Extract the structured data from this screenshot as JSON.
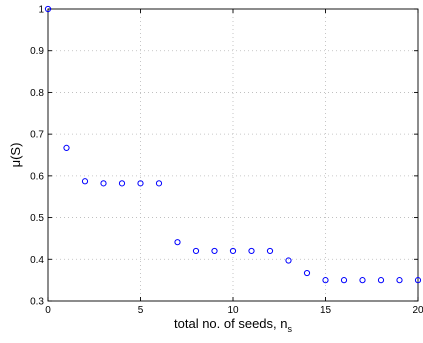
{
  "chart_data": {
    "type": "scatter",
    "title": "",
    "xlabel": "total no. of seeds, n",
    "xlabel_subscript": "s",
    "ylabel": "μ(S)",
    "xlim": [
      0,
      20
    ],
    "ylim": [
      0.3,
      1
    ],
    "grid": true,
    "x_ticks": [
      0,
      5,
      10,
      15,
      20
    ],
    "y_ticks": [
      0.3,
      0.4,
      0.5,
      0.6,
      0.7,
      0.8,
      0.9,
      1
    ],
    "x_tick_labels": [
      "0",
      "5",
      "10",
      "15",
      "20"
    ],
    "y_tick_labels": [
      "0.3",
      "0.4",
      "0.5",
      "0.6",
      "0.7",
      "0.8",
      "0.9",
      "1"
    ],
    "marker": "circle-open",
    "color": "#0000ff",
    "series": [
      {
        "x": [
          0,
          1,
          2,
          3,
          4,
          5,
          6,
          7,
          8,
          9,
          10,
          11,
          12,
          13,
          14,
          15,
          16,
          17,
          18,
          19,
          20
        ],
        "y": [
          1.0,
          0.667,
          0.587,
          0.582,
          0.582,
          0.582,
          0.582,
          0.441,
          0.42,
          0.42,
          0.42,
          0.42,
          0.42,
          0.397,
          0.367,
          0.35,
          0.35,
          0.35,
          0.35,
          0.35,
          0.35
        ]
      }
    ]
  }
}
